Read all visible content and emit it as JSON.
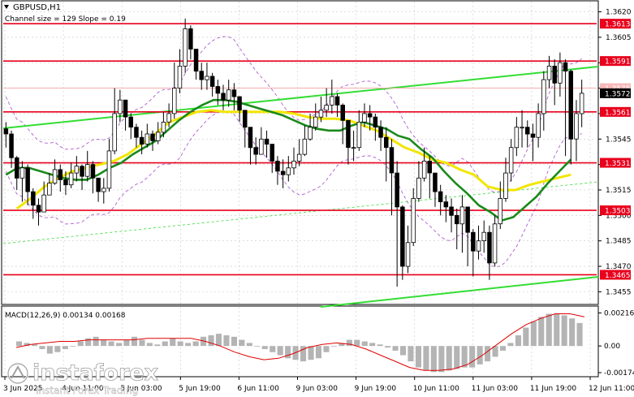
{
  "header": {
    "symbol_line": "GBPUSD,H1",
    "channel_line": "Channel size = 129 Slope = 0.19"
  },
  "watermark": {
    "brand": "instaforex",
    "tagline": "Instant Forex Trading"
  },
  "colors": {
    "background": "#ffffff",
    "candles": "#000000",
    "level_lines": "#e8001c",
    "level_label_bg": "#e8001c",
    "current_price_bg": "#000000",
    "ma_green": "#1a8a1a",
    "ma_yellow": "#f2e600",
    "channel_lime": "#33dd33",
    "envelope_purple": "#b05fd0",
    "macd_histogram": "#b4b4b4",
    "macd_signal": "#e00000",
    "grid": "#c8c8c8"
  },
  "chart_data": [
    {
      "type": "candlestick",
      "symbol": "GBPUSD",
      "timeframe": "H1",
      "y_ticks": [
        "1.3620",
        "1.3605",
        "1.3590",
        "1.3575",
        "1.3560",
        "1.3545",
        "1.3530",
        "1.3515",
        "1.3500",
        "1.3485",
        "1.3470",
        "1.3455"
      ],
      "ylim": [
        1.3448,
        1.3626
      ],
      "x_ticks": [
        "3 Jun 2025",
        "4 Jun 11:00",
        "5 Jun 03:00",
        "5 Jun 19:00",
        "6 Jun 11:00",
        "9 Jun 03:00",
        "9 Jun 19:00",
        "10 Jun 11:00",
        "11 Jun 03:00",
        "11 Jun 19:00",
        "12 Jun 11:00"
      ],
      "levels": [
        {
          "value": 1.3613,
          "label": "1.3613"
        },
        {
          "value": 1.3591,
          "label": "1.3591"
        },
        {
          "value": 1.3561,
          "label": "1.3561"
        },
        {
          "value": 1.3531,
          "label": "1.3531"
        },
        {
          "value": 1.3503,
          "label": "1.3503"
        },
        {
          "value": 1.3465,
          "label": "1.3465"
        }
      ],
      "hidden_level_label": "1.3575",
      "current_price": "1.3572",
      "grid": true,
      "series": [
        {
          "kind": "close",
          "values": [
            1.3548,
            1.3534,
            1.3522,
            1.3528,
            1.3514,
            1.3506,
            1.3502,
            1.3512,
            1.3519,
            1.3527,
            1.3521,
            1.3518,
            1.3525,
            1.3529,
            1.3523,
            1.353,
            1.3522,
            1.3514,
            1.3516,
            1.3538,
            1.356,
            1.3568,
            1.3558,
            1.3552,
            1.3546,
            1.3542,
            1.3548,
            1.3544,
            1.3549,
            1.3555,
            1.356,
            1.3575,
            1.3588,
            1.361,
            1.3598,
            1.3585,
            1.358,
            1.3582,
            1.3576,
            1.3572,
            1.3568,
            1.3574,
            1.357,
            1.3562,
            1.3552,
            1.354,
            1.3536,
            1.3545,
            1.3542,
            1.3532,
            1.3526,
            1.3524,
            1.3528,
            1.3532,
            1.3536,
            1.3545,
            1.3552,
            1.3558,
            1.3562,
            1.3565,
            1.357,
            1.3565,
            1.3556,
            1.354,
            1.354,
            1.3555,
            1.356,
            1.3558,
            1.3552,
            1.3546,
            1.354,
            1.3525,
            1.3505,
            1.347,
            1.3484,
            1.351,
            1.3522,
            1.3532,
            1.3525,
            1.3514,
            1.3508,
            1.3505,
            1.35,
            1.3495,
            1.3505,
            1.349,
            1.3479,
            1.3485,
            1.349,
            1.3472,
            1.3495,
            1.351,
            1.3525,
            1.354,
            1.3552,
            1.3552,
            1.3548,
            1.3546,
            1.356,
            1.358,
            1.3588,
            1.3578,
            1.359,
            1.3585,
            1.3545,
            1.356,
            1.3572
          ]
        },
        {
          "kind": "high",
          "values": [
            1.3555,
            1.355,
            1.3535,
            1.3532,
            1.353,
            1.3516,
            1.351,
            1.352,
            1.3525,
            1.3533,
            1.353,
            1.3526,
            1.3531,
            1.3535,
            1.353,
            1.3538,
            1.3532,
            1.3522,
            1.3522,
            1.3545,
            1.3575,
            1.3574,
            1.3566,
            1.356,
            1.3554,
            1.355,
            1.3554,
            1.355,
            1.3555,
            1.3561,
            1.3566,
            1.359,
            1.3598,
            1.3616,
            1.3612,
            1.3596,
            1.359,
            1.359,
            1.3584,
            1.358,
            1.3577,
            1.358,
            1.3578,
            1.357,
            1.3562,
            1.3552,
            1.3546,
            1.3552,
            1.355,
            1.3542,
            1.3535,
            1.3533,
            1.3535,
            1.354,
            1.3545,
            1.3553,
            1.356,
            1.3566,
            1.357,
            1.3575,
            1.358,
            1.3572,
            1.3566,
            1.3555,
            1.355,
            1.3562,
            1.3566,
            1.3565,
            1.356,
            1.3556,
            1.3552,
            1.3545,
            1.3532,
            1.3506,
            1.3494,
            1.3516,
            1.3532,
            1.354,
            1.3535,
            1.3524,
            1.3518,
            1.3512,
            1.351,
            1.3504,
            1.3512,
            1.3505,
            1.3492,
            1.3494,
            1.3497,
            1.3494,
            1.35,
            1.352,
            1.3534,
            1.3545,
            1.3558,
            1.3562,
            1.3556,
            1.3554,
            1.3566,
            1.3585,
            1.3594,
            1.3592,
            1.3596,
            1.3592,
            1.3586,
            1.3568,
            1.358
          ]
        },
        {
          "kind": "low",
          "values": [
            1.354,
            1.3528,
            1.3515,
            1.3508,
            1.3506,
            1.3498,
            1.3494,
            1.3503,
            1.3512,
            1.3518,
            1.3514,
            1.3512,
            1.3516,
            1.352,
            1.3515,
            1.352,
            1.3513,
            1.3508,
            1.3507,
            1.3514,
            1.3536,
            1.3555,
            1.355,
            1.3545,
            1.354,
            1.3536,
            1.354,
            1.3538,
            1.3542,
            1.3546,
            1.3552,
            1.3557,
            1.3572,
            1.3584,
            1.3592,
            1.358,
            1.3574,
            1.3574,
            1.357,
            1.3565,
            1.3562,
            1.3564,
            1.3562,
            1.3555,
            1.354,
            1.353,
            1.353,
            1.3536,
            1.3534,
            1.3525,
            1.3518,
            1.3516,
            1.352,
            1.3524,
            1.3529,
            1.3535,
            1.3544,
            1.355,
            1.3555,
            1.3558,
            1.356,
            1.3558,
            1.3542,
            1.353,
            1.3532,
            1.3538,
            1.3552,
            1.355,
            1.3544,
            1.3538,
            1.352,
            1.35,
            1.3458,
            1.3462,
            1.3466,
            1.3482,
            1.3508,
            1.352,
            1.351,
            1.3505,
            1.35,
            1.3496,
            1.349,
            1.348,
            1.3478,
            1.347,
            1.3464,
            1.3474,
            1.3478,
            1.3462,
            1.347,
            1.3492,
            1.3508,
            1.352,
            1.3535,
            1.354,
            1.354,
            1.3532,
            1.354,
            1.355,
            1.3575,
            1.3565,
            1.357,
            1.3535,
            1.353,
            1.3532,
            1.3552
          ]
        },
        {
          "kind": "ma_green",
          "values": [
            1.3524,
            1.3528,
            1.3528,
            1.3526,
            1.3524,
            1.3522,
            1.3521,
            1.3521,
            1.3524,
            1.3528,
            1.3531,
            1.3536,
            1.354,
            1.3544,
            1.355,
            1.3556,
            1.3561,
            1.3565,
            1.3568,
            1.3568,
            1.3567,
            1.3565,
            1.3563,
            1.3561,
            1.3559,
            1.3556,
            1.3553,
            1.3551,
            1.355,
            1.355,
            1.3553,
            1.3555,
            1.3553,
            1.3551,
            1.3547,
            1.3545,
            1.3539,
            1.3534,
            1.3526,
            1.3519,
            1.3513,
            1.3506,
            1.3502,
            1.3497,
            1.3499,
            1.3505,
            1.3511,
            1.3519,
            1.3526,
            1.3533
          ]
        },
        {
          "kind": "ma_yellow",
          "values": [
            1.3504,
            1.351,
            1.3517,
            1.3522,
            1.3526,
            1.3528,
            1.353,
            1.3532,
            1.3536,
            1.3542,
            1.3548,
            1.3555,
            1.3558,
            1.3561,
            1.3562,
            1.3561,
            1.3561,
            1.3561,
            1.3561,
            1.3561,
            1.356,
            1.3558,
            1.3557,
            1.3557,
            1.3556,
            1.3553,
            1.355,
            1.3545,
            1.354,
            1.3537,
            1.3533,
            1.3531,
            1.3527,
            1.3524,
            1.3517,
            1.3515,
            1.3515,
            1.3518,
            1.352,
            1.3522,
            1.3524
          ]
        }
      ]
    },
    {
      "type": "bar",
      "title": "MACD(12,26,9) 0.00134 0.00168",
      "y_ticks": [
        "0.00216",
        "0.00",
        "-0.00174"
      ],
      "ylim": [
        -0.0019,
        0.0025
      ],
      "series": [
        {
          "name": "histogram",
          "values": [
            0.0003,
            0.0002,
            0.0001,
            -0.0002,
            -0.0005,
            -0.0004,
            -0.0002,
            0.0,
            0.0003,
            0.0005,
            0.0006,
            0.0004,
            0.0003,
            0.0002,
            0.0004,
            0.0006,
            0.0004,
            0.0002,
            0.0001,
            0.0003,
            0.0005,
            0.0003,
            0.0002,
            0.0003,
            0.0006,
            0.0007,
            0.0008,
            0.0007,
            0.0006,
            0.0004,
            0.0002,
            0.0,
            -0.0002,
            -0.0004,
            -0.0006,
            -0.0008,
            -0.0009,
            -0.001,
            -0.0009,
            -0.0008,
            -0.0004,
            0.0,
            0.0002,
            0.0004,
            0.0004,
            0.0003,
            0.0002,
            0.0001,
            -0.0001,
            -0.0003,
            -0.0006,
            -0.001,
            -0.0014,
            -0.0016,
            -0.0017,
            -0.0017,
            -0.0016,
            -0.0015,
            -0.0014,
            -0.0014,
            -0.0012,
            -0.001,
            -0.0007,
            -0.0003,
            0.0002,
            0.0007,
            0.0012,
            0.0016,
            0.0019,
            0.0021,
            0.0021,
            0.002,
            0.0018,
            0.0015
          ]
        },
        {
          "name": "signal",
          "values": [
            -0.0001,
            0.0001,
            0.0002,
            0.0003,
            0.0003,
            0.0004,
            0.0004,
            0.0004,
            0.0004,
            0.0005,
            0.0005,
            0.0005,
            0.0005,
            0.0003,
            0.0,
            -0.0004,
            -0.0007,
            -0.0009,
            -0.0008,
            -0.0005,
            -0.0001,
            0.0001,
            0.0002,
            0.0001,
            -0.0002,
            -0.0006,
            -0.001,
            -0.0014,
            -0.0016,
            -0.0016,
            -0.0015,
            -0.0012,
            -0.0006,
            0.0001,
            0.0008,
            0.0014,
            0.0018,
            0.0021,
            0.0021,
            0.0019
          ]
        }
      ]
    }
  ]
}
